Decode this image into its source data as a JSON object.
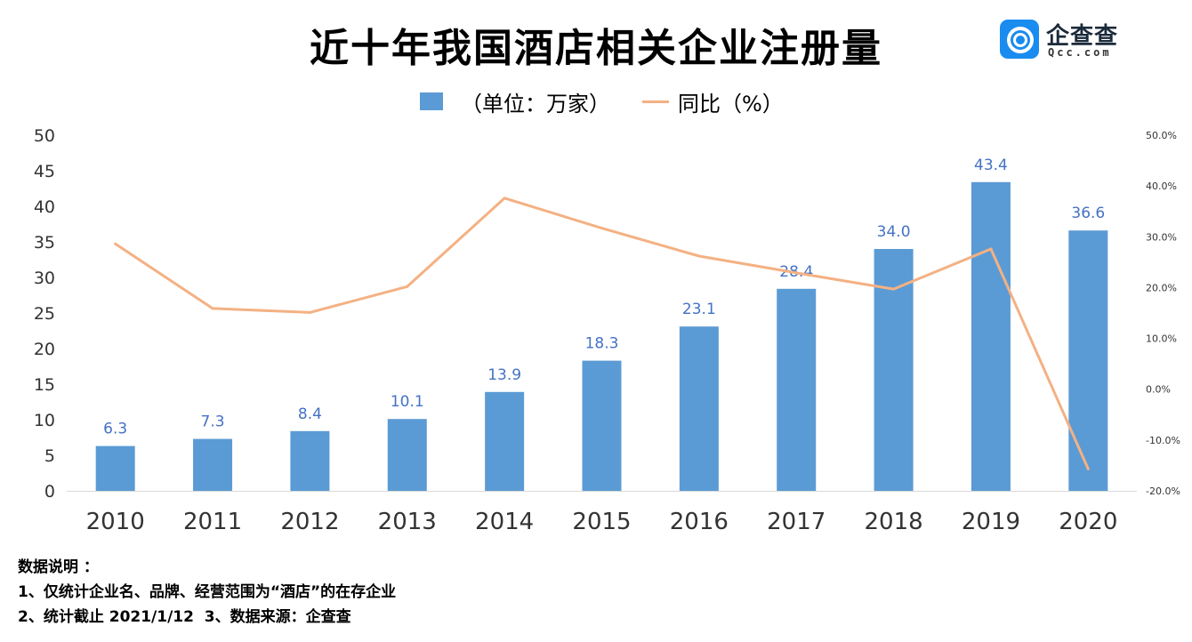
{
  "title": "近十年我国酒店相关企业注册量",
  "logo": {
    "name": "企查查",
    "domain": "Qcc.com"
  },
  "legend": {
    "bar": "（单位：万家）",
    "line": "同比（%）"
  },
  "colors": {
    "bar": "#5b9bd5",
    "line": "#f4b183",
    "bar_label": "#4472c4"
  },
  "chart_data": {
    "type": "bar",
    "categories": [
      "2010",
      "2011",
      "2012",
      "2013",
      "2014",
      "2015",
      "2016",
      "2017",
      "2018",
      "2019",
      "2020"
    ],
    "series": [
      {
        "name": "（单位：万家）",
        "type": "bar",
        "axis": "left",
        "values": [
          6.3,
          7.3,
          8.4,
          10.1,
          13.9,
          18.3,
          23.1,
          28.4,
          34.0,
          43.4,
          36.6
        ],
        "labels": [
          "6.3",
          "7.3",
          "8.4",
          "10.1",
          "13.9",
          "18.3",
          "23.1",
          "28.4",
          "34.0",
          "43.4",
          "36.6"
        ]
      },
      {
        "name": "同比（%）",
        "type": "line",
        "axis": "right",
        "values": [
          28.6,
          15.9,
          15.1,
          20.2,
          37.6,
          31.7,
          26.2,
          22.9,
          19.7,
          27.6,
          -15.7
        ]
      }
    ],
    "ylim_left": [
      0,
      50
    ],
    "yticks_left": [
      "0",
      "5",
      "10",
      "15",
      "20",
      "25",
      "30",
      "35",
      "40",
      "45",
      "50"
    ],
    "ylim_right": [
      -20,
      50
    ],
    "yticks_right": [
      "-20.0%",
      "-10.0%",
      "0.0%",
      "10.0%",
      "20.0%",
      "30.0%",
      "40.0%",
      "50.0%"
    ],
    "grid": false,
    "legend_position": "top-center"
  },
  "notes": [
    "数据说明 ：",
    "1、仅统计企业名、品牌、经营范围为“酒店”的在存企业",
    "2、统计截止 2021/1/12  3、数据来源：企查查"
  ]
}
